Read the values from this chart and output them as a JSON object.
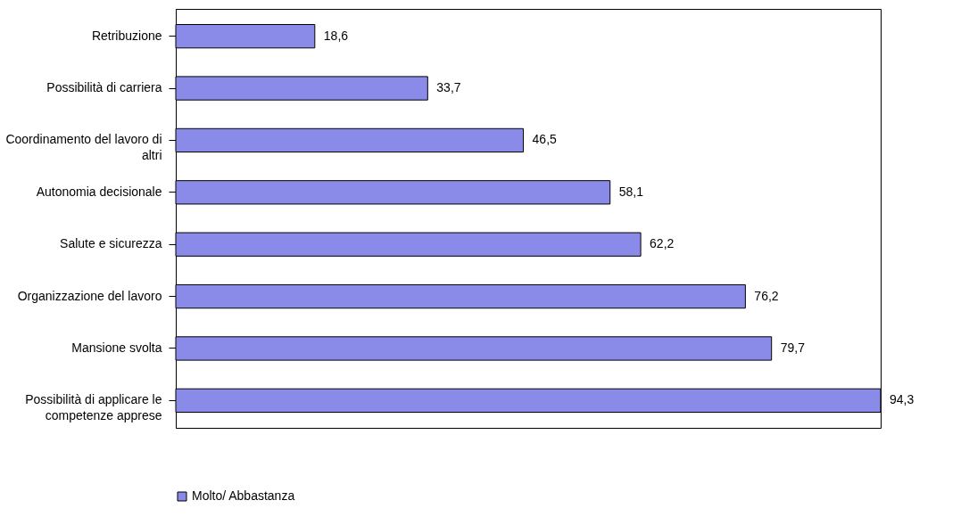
{
  "chart_data": {
    "type": "bar",
    "orientation": "horizontal",
    "categories": [
      "Retribuzione",
      "Possibilità di carriera",
      "Coordinamento del lavoro di altri",
      "Autonomia decisionale",
      "Salute e sicurezza",
      "Organizzazione del lavoro",
      "Mansione svolta",
      "Possibilità di applicare le competenze apprese"
    ],
    "series": [
      {
        "name": "Molto/ Abbastanza",
        "color": "#8a8ae8",
        "values": [
          18.6,
          33.7,
          46.5,
          58.1,
          62.2,
          76.2,
          79.7,
          94.3
        ],
        "value_labels": [
          "18,6",
          "33,7",
          "46,5",
          "58,1",
          "62,2",
          "76,2",
          "79,7",
          "94,3"
        ]
      }
    ],
    "legend": "bottom"
  }
}
